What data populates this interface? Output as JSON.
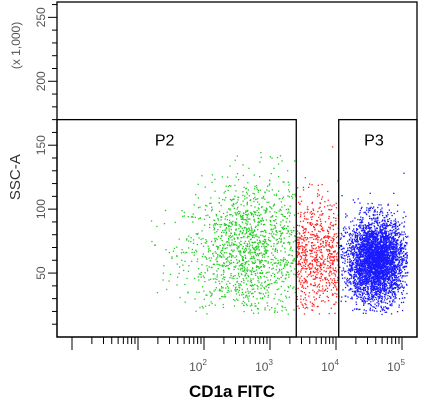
{
  "chart_data": {
    "type": "scatter",
    "title": "",
    "xlabel": "CD1a FITC",
    "ylabel": "SSC-A",
    "y_scale_note": "(x 1,000)",
    "x_scale": "log",
    "xlim": [
      1,
      100000
    ],
    "ylim": [
      0,
      262
    ],
    "x_ticks": [
      {
        "base": "10",
        "exp": "2",
        "value": 100
      },
      {
        "base": "10",
        "exp": "3",
        "value": 1000
      },
      {
        "base": "10",
        "exp": "4",
        "value": 10000
      },
      {
        "base": "10",
        "exp": "5",
        "value": 100000
      }
    ],
    "y_ticks": [
      "50",
      "100",
      "150",
      "200",
      "250"
    ],
    "y_tick_values": [
      50,
      100,
      150,
      200,
      250
    ],
    "gates": [
      {
        "name": "P2",
        "x_range": [
          1,
          2500
        ],
        "y_range": [
          0,
          170
        ]
      },
      {
        "name": "P3",
        "x_range": [
          11000,
          100000
        ],
        "y_range": [
          0,
          170
        ]
      }
    ],
    "series": [
      {
        "name": "P2",
        "color": "#22cc22",
        "count": 1400,
        "x_center_log": 2.7,
        "x_spread_log": 0.5,
        "x_range": [
          10,
          2500
        ],
        "y_center": 68,
        "y_spread": 28
      },
      {
        "name": "",
        "color": "#ff2222",
        "count": 700,
        "x_center_log": 3.7,
        "x_spread_log": 0.25,
        "x_range": [
          2500,
          11000
        ],
        "y_center": 65,
        "y_spread": 22
      },
      {
        "name": "P3",
        "color": "#1a1aff",
        "count": 3800,
        "x_center_log": 4.6,
        "x_spread_log": 0.22,
        "x_range": [
          11000,
          120000
        ],
        "y_center": 60,
        "y_spread": 16
      }
    ],
    "grid": false,
    "legend": "none"
  }
}
